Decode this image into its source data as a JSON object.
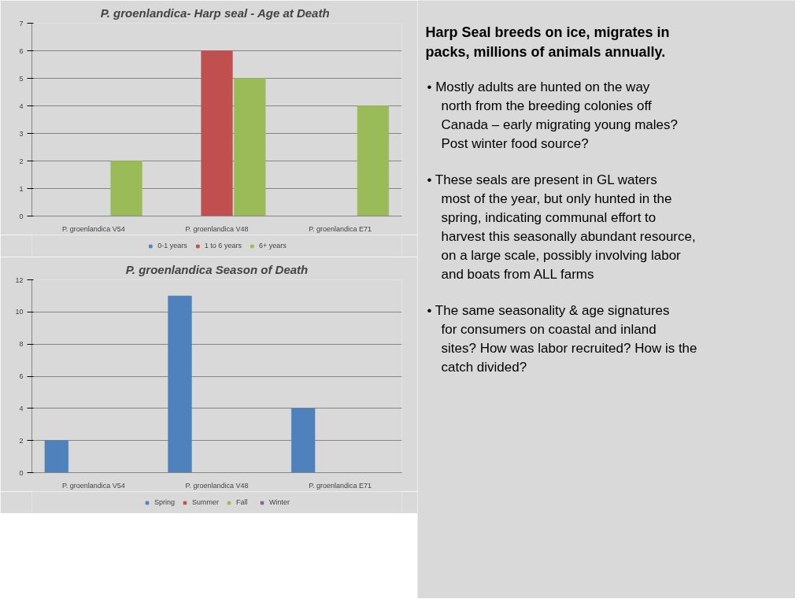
{
  "chart_data": [
    {
      "type": "bar",
      "title": "P. groenlandica-  Harp seal - Age at Death",
      "categories": [
        "P. groenlandica V54",
        "P. groenlandica V48",
        "P. groenlandica E71"
      ],
      "series": [
        {
          "name": "0-1 years",
          "color": "#4f81bd",
          "values": [
            0,
            0,
            0
          ]
        },
        {
          "name": "1 to 6 years",
          "color": "#c0504d",
          "values": [
            0,
            6,
            0
          ]
        },
        {
          "name": "6+ years",
          "color": "#9bbb59",
          "values": [
            2,
            5,
            4
          ]
        }
      ],
      "ylim": [
        0,
        7
      ],
      "yticks": [
        0,
        1,
        2,
        3,
        4,
        5,
        6,
        7
      ],
      "grid": "y",
      "legend": "bottom"
    },
    {
      "type": "bar",
      "title": "P. groenlandica Season of Death",
      "categories": [
        "P. groenlandica V54",
        "P. groenlandica V48",
        "P. groenlandica E71"
      ],
      "series": [
        {
          "name": "Spring",
          "color": "#4f81bd",
          "values": [
            2,
            11,
            4
          ]
        },
        {
          "name": "Summer",
          "color": "#c0504d",
          "values": [
            0,
            0,
            0
          ]
        },
        {
          "name": "Fall",
          "color": "#9bbb59",
          "values": [
            0,
            0,
            0
          ]
        },
        {
          "name": "Winter",
          "color": "#8064a2",
          "values": [
            0,
            0,
            0
          ]
        }
      ],
      "ylim": [
        0,
        12
      ],
      "yticks": [
        0,
        2,
        4,
        6,
        8,
        10,
        12
      ],
      "grid": "y",
      "legend": "bottom"
    },
    {
      "type": "other",
      "title": "Harp Seal breeds on ice, migrates in packs, millions of animals annually.",
      "annotations": [
        "•  Mostly adults are hunted  on the way north from the breeding colonies off Canada  – early migrating young males? Post winter food source?",
        "•  These seals are present in GL waters most of the year, but only hunted in the spring, indicating communal effort to harvest this seasonally abundant resource, on a large scale, possibly involving labor and boats from ALL farms",
        "•  The same seasonality & age signatures for  consumers on coastal and inland sites? How was labor recruited? How is the catch divided?"
      ]
    }
  ]
}
